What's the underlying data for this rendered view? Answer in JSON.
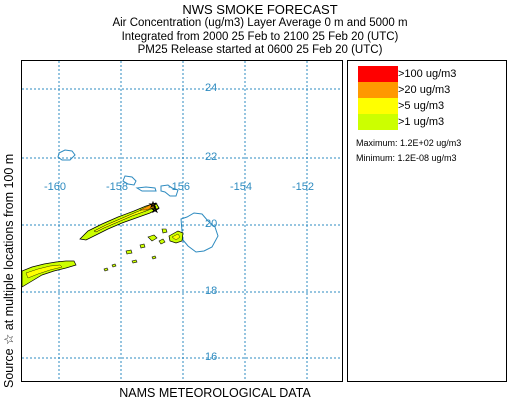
{
  "header": {
    "title": "NWS SMOKE FORECAST",
    "line1": "Air Concentration (ug/m3) Layer Average    0 m  and  5000 m",
    "line2": "Integrated from 2000 25 Feb to 2100 25 Feb 20 (UTC)",
    "line3": "PM25 Release started at 0600 25 Feb 20 (UTC)"
  },
  "side_label": "Source ☆  at multiple locations   from  100 m",
  "bottom_label": "NAMS METEOROLOGICAL DATA",
  "map": {
    "lon_labels": [
      "-160",
      "-158",
      "-156",
      "-154",
      "-152"
    ],
    "lat_labels": [
      "24",
      "22",
      "20",
      "18",
      "16"
    ]
  },
  "legend": {
    "items": [
      {
        "label": ">100 ug/m3",
        "color": "#ff0000"
      },
      {
        "label": ">20 ug/m3",
        "color": "#ff9900"
      },
      {
        "label": ">5 ug/m3",
        "color": "#ffff00"
      },
      {
        "label": ">1 ug/m3",
        "color": "#ccff00"
      }
    ],
    "maximum": "Maximum: 1.2E+02 ug/m3",
    "minimum": "Minimum: 1.2E-08 ug/m3"
  },
  "colors": {
    "grid": "#2e8bc0",
    "coastline": "#2e8bc0",
    "smoke_outline": "#000000"
  }
}
